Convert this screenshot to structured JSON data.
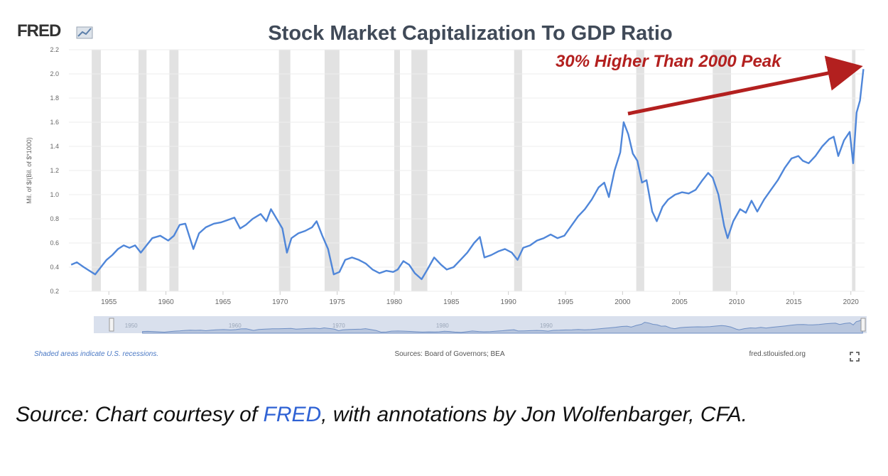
{
  "logo": {
    "text": "FRED",
    "icon": "fred-chart-icon"
  },
  "annotation": {
    "text": "30% Higher Than 2000 Peak",
    "color": "#b3201f"
  },
  "footer": {
    "left": "Shaded areas indicate U.S. recessions.",
    "center": "Sources: Board of Governors; BEA",
    "right": "fred.stlouisfed.org",
    "fullscreen_icon": "fullscreen-icon"
  },
  "caption": {
    "prefix": "Source: Chart courtesy of ",
    "link": "FRED",
    "suffix": ", with annotations by Jon Wolfenbarger, CFA."
  },
  "colors": {
    "line": "#4f86d9",
    "recession": "#e2e2e2",
    "title": "#404a58",
    "axis_text": "#666666",
    "navigator": "#cfd8ea"
  },
  "chart_data": {
    "type": "line",
    "title": "Stock Market Capitalization To GDP Ratio",
    "ylabel": "Mil. of $/(Bil. of $*1000)",
    "xlabel": "",
    "xlim": [
      1951.5,
      2021.2
    ],
    "ylim": [
      0.2,
      2.2
    ],
    "yticks": [
      "0.2",
      "0.4",
      "0.6",
      "0.8",
      "1.0",
      "1.2",
      "1.4",
      "1.6",
      "1.8",
      "2.0",
      "2.2"
    ],
    "xticks": [
      "1955",
      "1960",
      "1965",
      "1970",
      "1975",
      "1980",
      "1985",
      "1990",
      "1995",
      "2000",
      "2005",
      "2010",
      "2015",
      "2020"
    ],
    "grid": true,
    "recessions": [
      [
        1953.5,
        1954.3
      ],
      [
        1957.6,
        1958.3
      ],
      [
        1960.3,
        1961.1
      ],
      [
        1969.9,
        1970.9
      ],
      [
        1973.9,
        1975.2
      ],
      [
        1980.0,
        1980.5
      ],
      [
        1981.5,
        1982.9
      ],
      [
        1990.5,
        1991.2
      ],
      [
        2001.2,
        2001.9
      ],
      [
        2007.9,
        2009.5
      ],
      [
        2020.1,
        2020.4
      ]
    ],
    "navigator_ticks": [
      "1950",
      "1960",
      "1970",
      "1980",
      "1990"
    ],
    "series": [
      {
        "values": [
          [
            1951.7,
            0.42
          ],
          [
            1952.2,
            0.44
          ],
          [
            1952.8,
            0.4
          ],
          [
            1953.3,
            0.37
          ],
          [
            1953.8,
            0.34
          ],
          [
            1954.3,
            0.4
          ],
          [
            1954.8,
            0.46
          ],
          [
            1955.3,
            0.5
          ],
          [
            1955.8,
            0.55
          ],
          [
            1956.3,
            0.58
          ],
          [
            1956.8,
            0.56
          ],
          [
            1957.3,
            0.58
          ],
          [
            1957.8,
            0.52
          ],
          [
            1958.3,
            0.58
          ],
          [
            1958.8,
            0.64
          ],
          [
            1959.5,
            0.66
          ],
          [
            1960.2,
            0.62
          ],
          [
            1960.7,
            0.66
          ],
          [
            1961.2,
            0.75
          ],
          [
            1961.7,
            0.76
          ],
          [
            1962.4,
            0.55
          ],
          [
            1962.9,
            0.68
          ],
          [
            1963.5,
            0.73
          ],
          [
            1964.2,
            0.76
          ],
          [
            1964.8,
            0.77
          ],
          [
            1965.4,
            0.79
          ],
          [
            1966.0,
            0.81
          ],
          [
            1966.5,
            0.72
          ],
          [
            1967.0,
            0.75
          ],
          [
            1967.6,
            0.8
          ],
          [
            1968.3,
            0.84
          ],
          [
            1968.8,
            0.78
          ],
          [
            1969.2,
            0.88
          ],
          [
            1969.7,
            0.8
          ],
          [
            1970.2,
            0.72
          ],
          [
            1970.6,
            0.52
          ],
          [
            1971.0,
            0.64
          ],
          [
            1971.6,
            0.68
          ],
          [
            1972.2,
            0.7
          ],
          [
            1972.8,
            0.73
          ],
          [
            1973.2,
            0.78
          ],
          [
            1973.7,
            0.66
          ],
          [
            1974.2,
            0.55
          ],
          [
            1974.7,
            0.34
          ],
          [
            1975.2,
            0.36
          ],
          [
            1975.7,
            0.46
          ],
          [
            1976.3,
            0.48
          ],
          [
            1976.9,
            0.46
          ],
          [
            1977.5,
            0.43
          ],
          [
            1978.1,
            0.38
          ],
          [
            1978.7,
            0.35
          ],
          [
            1979.3,
            0.37
          ],
          [
            1979.9,
            0.36
          ],
          [
            1980.3,
            0.38
          ],
          [
            1980.8,
            0.45
          ],
          [
            1981.3,
            0.42
          ],
          [
            1981.8,
            0.35
          ],
          [
            1982.4,
            0.3
          ],
          [
            1982.9,
            0.38
          ],
          [
            1983.5,
            0.48
          ],
          [
            1984.1,
            0.42
          ],
          [
            1984.6,
            0.38
          ],
          [
            1985.2,
            0.4
          ],
          [
            1985.8,
            0.46
          ],
          [
            1986.4,
            0.52
          ],
          [
            1987.0,
            0.6
          ],
          [
            1987.5,
            0.65
          ],
          [
            1987.9,
            0.48
          ],
          [
            1988.5,
            0.5
          ],
          [
            1989.1,
            0.53
          ],
          [
            1989.7,
            0.55
          ],
          [
            1990.3,
            0.52
          ],
          [
            1990.8,
            0.46
          ],
          [
            1991.3,
            0.56
          ],
          [
            1991.9,
            0.58
          ],
          [
            1992.5,
            0.62
          ],
          [
            1993.1,
            0.64
          ],
          [
            1993.7,
            0.67
          ],
          [
            1994.3,
            0.64
          ],
          [
            1994.9,
            0.66
          ],
          [
            1995.5,
            0.74
          ],
          [
            1996.1,
            0.82
          ],
          [
            1996.7,
            0.88
          ],
          [
            1997.3,
            0.96
          ],
          [
            1997.9,
            1.06
          ],
          [
            1998.4,
            1.1
          ],
          [
            1998.8,
            0.98
          ],
          [
            1999.3,
            1.2
          ],
          [
            1999.8,
            1.35
          ],
          [
            2000.1,
            1.6
          ],
          [
            2000.5,
            1.5
          ],
          [
            2000.9,
            1.34
          ],
          [
            2001.3,
            1.28
          ],
          [
            2001.7,
            1.1
          ],
          [
            2002.1,
            1.12
          ],
          [
            2002.6,
            0.86
          ],
          [
            2003.0,
            0.78
          ],
          [
            2003.5,
            0.9
          ],
          [
            2004.0,
            0.96
          ],
          [
            2004.6,
            1.0
          ],
          [
            2005.2,
            1.02
          ],
          [
            2005.8,
            1.01
          ],
          [
            2006.4,
            1.04
          ],
          [
            2007.0,
            1.12
          ],
          [
            2007.5,
            1.18
          ],
          [
            2007.9,
            1.14
          ],
          [
            2008.4,
            1.0
          ],
          [
            2008.9,
            0.74
          ],
          [
            2009.2,
            0.64
          ],
          [
            2009.7,
            0.78
          ],
          [
            2010.3,
            0.88
          ],
          [
            2010.8,
            0.85
          ],
          [
            2011.3,
            0.95
          ],
          [
            2011.8,
            0.86
          ],
          [
            2012.4,
            0.96
          ],
          [
            2013.0,
            1.04
          ],
          [
            2013.6,
            1.12
          ],
          [
            2014.2,
            1.22
          ],
          [
            2014.8,
            1.3
          ],
          [
            2015.4,
            1.32
          ],
          [
            2015.8,
            1.28
          ],
          [
            2016.3,
            1.26
          ],
          [
            2016.9,
            1.32
          ],
          [
            2017.5,
            1.4
          ],
          [
            2018.1,
            1.46
          ],
          [
            2018.5,
            1.48
          ],
          [
            2018.9,
            1.32
          ],
          [
            2019.4,
            1.45
          ],
          [
            2019.9,
            1.52
          ],
          [
            2020.2,
            1.26
          ],
          [
            2020.5,
            1.68
          ],
          [
            2020.8,
            1.78
          ],
          [
            2021.1,
            2.04
          ]
        ]
      }
    ]
  }
}
